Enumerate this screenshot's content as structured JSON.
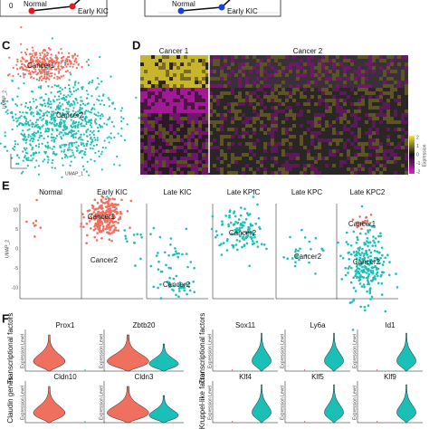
{
  "panel_top": {
    "axis_zero": "0",
    "left": {
      "start": "Normal",
      "end": "Early KIC"
    },
    "right": {
      "start": "Normal",
      "end": "Early KIC"
    }
  },
  "panel_c": {
    "label": "C",
    "clusters": [
      "Cancer1",
      "Cancer2"
    ],
    "x_label": "UMAP_1",
    "y_label": "UMAP_2"
  },
  "panel_d": {
    "label": "D",
    "groups": [
      "Cancer 1",
      "Cancer 2"
    ],
    "legend_title": "Expression",
    "legend_ticks": [
      "2",
      "1",
      "0",
      "-1",
      "-2"
    ]
  },
  "panel_e": {
    "label": "E",
    "samples": [
      "Normal",
      "Early KIC",
      "Late KIC",
      "Late KPfC",
      "Late KPC",
      "Late KPC2"
    ],
    "cluster_labels": [
      "Cancer1",
      "Cancer2"
    ],
    "x_label": "UMAP_1",
    "y_label": "UMAP_2",
    "y_ticks": [
      "10",
      "5",
      "0",
      "-5",
      "-10"
    ]
  },
  "panel_f": {
    "label": "F",
    "row_labels": [
      "Transcriptional factors",
      "Claudin genes",
      "Transcriptional factors",
      "Kruppel-like factor"
    ],
    "genes": [
      [
        "Prox1",
        "Zbtb20",
        "Sox11",
        "Ly6a",
        "Id1"
      ],
      [
        "Cldn10",
        "Cldn3",
        "Klf4",
        "Klf5",
        "Klf9"
      ]
    ],
    "y_label": "Expression Level"
  }
}
